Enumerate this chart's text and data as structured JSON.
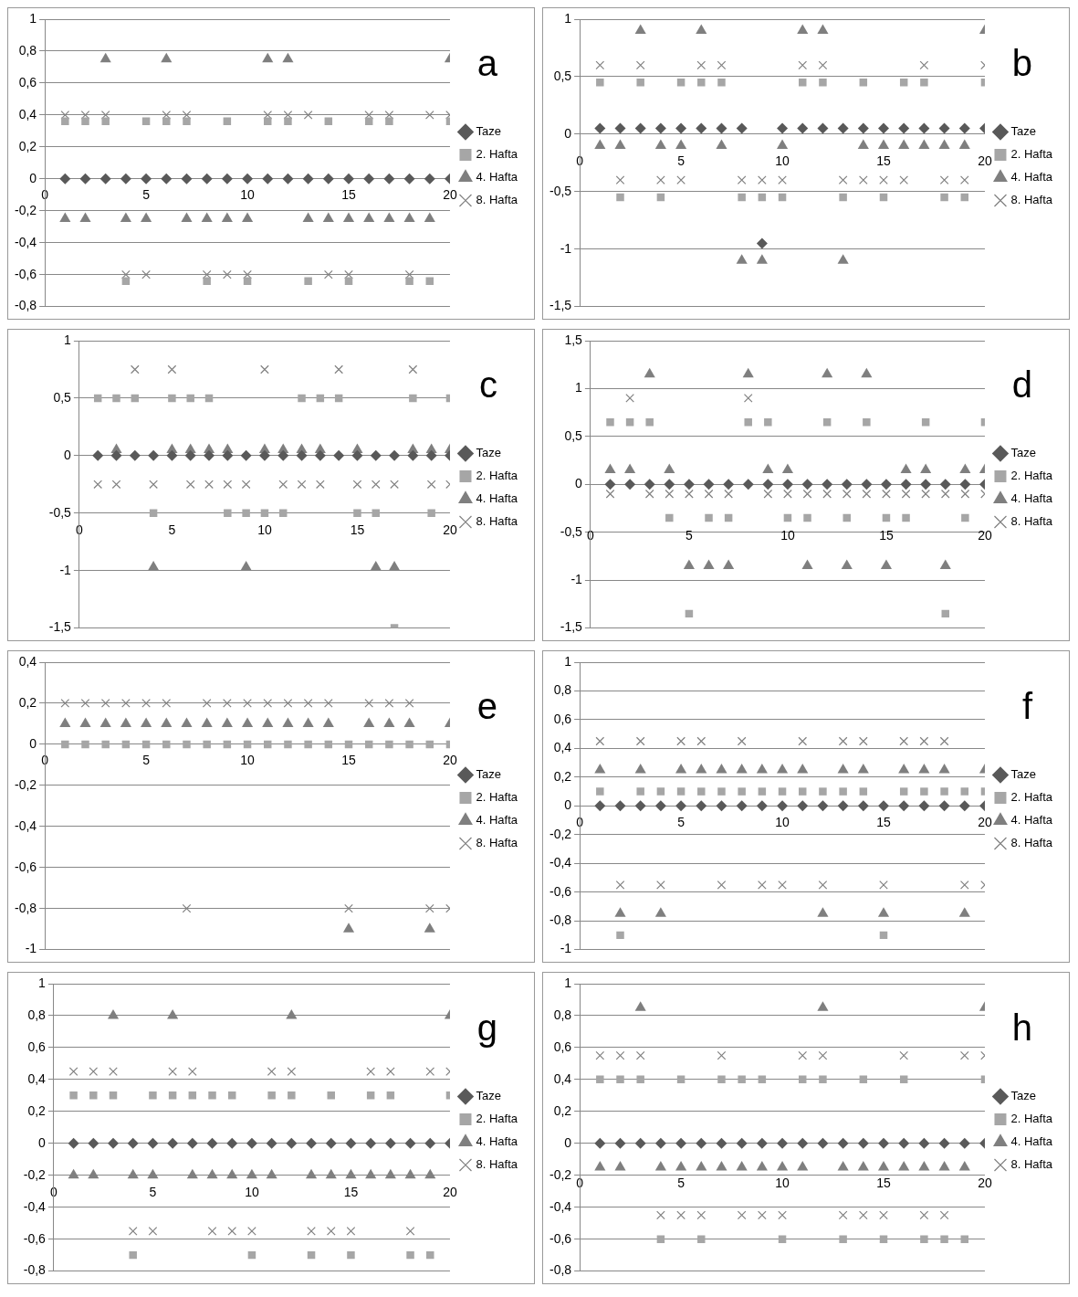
{
  "chart_data": [
    {
      "type": "scatter",
      "annotations": [
        "a"
      ],
      "x": [
        1,
        2,
        3,
        4,
        5,
        6,
        7,
        8,
        9,
        10,
        11,
        12,
        13,
        14,
        15,
        16,
        17,
        18,
        19,
        20
      ],
      "xlim": [
        0,
        20
      ],
      "xticks": [
        0,
        5,
        10,
        15,
        20
      ],
      "ylim": [
        -0.8,
        1
      ],
      "yticks": [
        {
          "value": -0.8,
          "label": "-0,8"
        },
        {
          "value": -0.6,
          "label": "-0,6"
        },
        {
          "value": -0.4,
          "label": "-0,4"
        },
        {
          "value": -0.2,
          "label": "-0,2"
        },
        0,
        {
          "value": 0.2,
          "label": "0,2"
        },
        {
          "value": 0.4,
          "label": "0,4"
        },
        {
          "value": 0.6,
          "label": "0,6"
        },
        {
          "value": 0.8,
          "label": "0,8"
        },
        1
      ],
      "grid": "y",
      "legend": "right",
      "series": [
        {
          "name": "Taze",
          "color": "#595959",
          "marker": "diamond",
          "values": [
            0,
            0,
            0,
            0,
            0,
            0,
            0,
            0,
            0,
            0,
            0,
            0,
            0,
            0,
            0,
            0,
            0,
            0,
            0,
            0
          ]
        },
        {
          "name": "2. Hafta",
          "color": "#a6a6a6",
          "marker": "square",
          "values": [
            0.36,
            0.36,
            0.36,
            -0.64,
            0.36,
            0.36,
            0.36,
            -0.64,
            0.36,
            -0.64,
            0.36,
            0.36,
            -0.64,
            0.36,
            -0.64,
            0.36,
            0.36,
            -0.64,
            -0.64,
            0.36
          ]
        },
        {
          "name": "4. Hafta",
          "color": "#7f7f7f",
          "marker": "triangle",
          "values": [
            -0.25,
            -0.25,
            0.75,
            -0.25,
            -0.25,
            0.75,
            -0.25,
            -0.25,
            -0.25,
            -0.25,
            0.75,
            0.75,
            -0.25,
            -0.25,
            -0.25,
            -0.25,
            -0.25,
            -0.25,
            -0.25,
            0.75
          ]
        },
        {
          "name": "8. Hafta",
          "color": "#808080",
          "marker": "cross",
          "values": [
            0.4,
            0.4,
            0.4,
            -0.6,
            -0.6,
            0.4,
            0.4,
            -0.6,
            -0.6,
            -0.6,
            0.4,
            0.4,
            0.4,
            -0.6,
            -0.6,
            0.4,
            0.4,
            -0.6,
            0.4,
            0.4
          ]
        }
      ]
    },
    {
      "type": "scatter",
      "annotations": [
        "b"
      ],
      "x": [
        1,
        2,
        3,
        4,
        5,
        6,
        7,
        8,
        9,
        10,
        11,
        12,
        13,
        14,
        15,
        16,
        17,
        18,
        19,
        20
      ],
      "xlim": [
        0,
        20
      ],
      "xticks": [
        0,
        5,
        10,
        15,
        20
      ],
      "ylim": [
        -1.5,
        1
      ],
      "yticks": [
        {
          "value": -1.5,
          "label": "-1,5"
        },
        -1,
        {
          "value": -0.5,
          "label": "-0,5"
        },
        0,
        {
          "value": 0.5,
          "label": "0,5"
        },
        1
      ],
      "grid": "y",
      "legend": "right",
      "series": [
        {
          "name": "Taze",
          "color": "#595959",
          "marker": "diamond",
          "values": [
            0.05,
            0.05,
            0.05,
            0.05,
            0.05,
            0.05,
            0.05,
            0.05,
            -0.95,
            0.05,
            0.05,
            0.05,
            0.05,
            0.05,
            0.05,
            0.05,
            0.05,
            0.05,
            0.05,
            0.05
          ]
        },
        {
          "name": "2. Hafta",
          "color": "#a6a6a6",
          "marker": "square",
          "values": [
            0.45,
            -0.55,
            0.45,
            -0.55,
            0.45,
            0.45,
            0.45,
            -0.55,
            -0.55,
            -0.55,
            0.45,
            0.45,
            -0.55,
            0.45,
            -0.55,
            0.45,
            0.45,
            -0.55,
            -0.55,
            0.45
          ]
        },
        {
          "name": "4. Hafta",
          "color": "#7f7f7f",
          "marker": "triangle",
          "values": [
            -0.1,
            -0.1,
            0.9,
            -0.1,
            -0.1,
            0.9,
            -0.1,
            -1.1,
            -1.1,
            -0.1,
            0.9,
            0.9,
            -1.1,
            -0.1,
            -0.1,
            -0.1,
            -0.1,
            -0.1,
            -0.1,
            0.9
          ]
        },
        {
          "name": "8. Hafta",
          "color": "#808080",
          "marker": "cross",
          "values": [
            0.6,
            -0.4,
            0.6,
            -0.4,
            -0.4,
            0.6,
            0.6,
            -0.4,
            -0.4,
            -0.4,
            0.6,
            0.6,
            -0.4,
            -0.4,
            -0.4,
            -0.4,
            0.6,
            -0.4,
            -0.4,
            0.6
          ]
        }
      ]
    },
    {
      "type": "scatter",
      "annotations": [
        "c"
      ],
      "x": [
        1,
        2,
        3,
        4,
        5,
        6,
        7,
        8,
        9,
        10,
        11,
        12,
        13,
        14,
        15,
        16,
        17,
        18,
        19,
        20
      ],
      "xlim": [
        0,
        20
      ],
      "xticks": [
        0,
        5,
        10,
        15,
        20
      ],
      "ylim": [
        -1.5,
        1
      ],
      "yticks": [
        {
          "value": -1.5,
          "label": "-1,5"
        },
        -1,
        {
          "value": -0.5,
          "label": "-0,5"
        },
        0,
        {
          "value": 0.5,
          "label": "0,5"
        },
        1
      ],
      "grid": "y",
      "legend": "right",
      "series": [
        {
          "name": "Taze",
          "color": "#595959",
          "marker": "diamond",
          "values": [
            0,
            0,
            0,
            0,
            0,
            0,
            0,
            0,
            0,
            0,
            0,
            0,
            0,
            0,
            0,
            0,
            0,
            0,
            0,
            0
          ]
        },
        {
          "name": "2. Hafta",
          "color": "#a6a6a6",
          "marker": "square",
          "values": [
            0.5,
            0.5,
            0.5,
            -0.5,
            0.5,
            0.5,
            0.5,
            -0.5,
            -0.5,
            -0.5,
            -0.5,
            0.5,
            0.5,
            0.5,
            -0.5,
            -0.5,
            -1.5,
            0.5,
            -0.5,
            0.5
          ]
        },
        {
          "name": "4. Hafta",
          "color": "#7f7f7f",
          "marker": "triangle",
          "values": [
            null,
            0.05,
            null,
            -0.97,
            0.05,
            0.05,
            0.05,
            0.05,
            -0.97,
            0.05,
            0.05,
            0.05,
            0.05,
            null,
            0.05,
            -0.97,
            -0.97,
            0.05,
            0.05,
            0.05
          ]
        },
        {
          "name": "8. Hafta",
          "color": "#808080",
          "marker": "cross",
          "values": [
            -0.25,
            -0.25,
            0.75,
            -0.25,
            0.75,
            -0.25,
            -0.25,
            -0.25,
            -0.25,
            0.75,
            -0.25,
            -0.25,
            -0.25,
            0.75,
            -0.25,
            -0.25,
            -0.25,
            0.75,
            -0.25,
            -0.25
          ]
        }
      ]
    },
    {
      "type": "scatter",
      "annotations": [
        "d"
      ],
      "x": [
        1,
        2,
        3,
        4,
        5,
        6,
        7,
        8,
        9,
        10,
        11,
        12,
        13,
        14,
        15,
        16,
        17,
        18,
        19,
        20
      ],
      "xlim": [
        0,
        20
      ],
      "xticks": [
        0,
        5,
        10,
        15,
        20
      ],
      "ylim": [
        -1.5,
        1.5
      ],
      "yticks": [
        {
          "value": -1.5,
          "label": "-1,5"
        },
        -1,
        {
          "value": -0.5,
          "label": "-0,5"
        },
        0,
        {
          "value": 0.5,
          "label": "0,5"
        },
        1,
        {
          "value": 1.5,
          "label": "1,5"
        }
      ],
      "grid": "y",
      "legend": "right",
      "series": [
        {
          "name": "Taze",
          "color": "#595959",
          "marker": "diamond",
          "values": [
            0,
            0,
            0,
            0,
            0,
            0,
            0,
            0,
            0,
            0,
            0,
            0,
            0,
            0,
            0,
            0,
            0,
            0,
            0,
            0
          ]
        },
        {
          "name": "2. Hafta",
          "color": "#a6a6a6",
          "marker": "square",
          "values": [
            0.65,
            0.65,
            0.65,
            -0.35,
            -1.35,
            -0.35,
            -0.35,
            0.65,
            0.65,
            -0.35,
            -0.35,
            0.65,
            -0.35,
            0.65,
            -0.35,
            -0.35,
            0.65,
            -1.35,
            -0.35,
            0.65
          ]
        },
        {
          "name": "4. Hafta",
          "color": "#7f7f7f",
          "marker": "triangle",
          "values": [
            0.15,
            0.15,
            1.15,
            0.15,
            -0.85,
            -0.85,
            -0.85,
            1.15,
            0.15,
            0.15,
            -0.85,
            1.15,
            -0.85,
            1.15,
            -0.85,
            0.15,
            0.15,
            -0.85,
            0.15,
            0.15
          ]
        },
        {
          "name": "8. Hafta",
          "color": "#808080",
          "marker": "cross",
          "values": [
            -0.1,
            0.9,
            -0.1,
            -0.1,
            -0.1,
            -0.1,
            -0.1,
            0.9,
            -0.1,
            -0.1,
            -0.1,
            -0.1,
            -0.1,
            -0.1,
            -0.1,
            -0.1,
            -0.1,
            -0.1,
            -0.1,
            -0.1
          ]
        }
      ]
    },
    {
      "type": "scatter",
      "annotations": [
        "e"
      ],
      "x": [
        1,
        2,
        3,
        4,
        5,
        6,
        7,
        8,
        9,
        10,
        11,
        12,
        13,
        14,
        15,
        16,
        17,
        18,
        19,
        20
      ],
      "xlim": [
        0,
        20
      ],
      "xticks": [
        0,
        5,
        10,
        15,
        20
      ],
      "ylim": [
        -1,
        0.4
      ],
      "yticks": [
        -1,
        {
          "value": -0.8,
          "label": "-0,8"
        },
        {
          "value": -0.6,
          "label": "-0,6"
        },
        {
          "value": -0.4,
          "label": "-0,4"
        },
        {
          "value": -0.2,
          "label": "-0,2"
        },
        0,
        {
          "value": 0.2,
          "label": "0,2"
        },
        {
          "value": 0.4,
          "label": "0,4"
        }
      ],
      "grid": "y",
      "legend": "right",
      "series": [
        {
          "name": "Taze",
          "color": "#595959",
          "marker": "diamond",
          "values": [
            null,
            null,
            null,
            null,
            null,
            null,
            null,
            null,
            null,
            null,
            null,
            null,
            null,
            null,
            null,
            null,
            null,
            null,
            null,
            null
          ]
        },
        {
          "name": "2. Hafta",
          "color": "#a6a6a6",
          "marker": "square",
          "values": [
            0,
            0,
            0,
            0,
            0,
            0,
            0,
            0,
            0,
            0,
            0,
            0,
            0,
            0,
            0,
            0,
            0,
            0,
            0,
            0
          ]
        },
        {
          "name": "4. Hafta",
          "color": "#7f7f7f",
          "marker": "triangle",
          "values": [
            0.1,
            0.1,
            0.1,
            0.1,
            0.1,
            0.1,
            0.1,
            0.1,
            0.1,
            0.1,
            0.1,
            0.1,
            0.1,
            0.1,
            -0.9,
            0.1,
            0.1,
            0.1,
            -0.9,
            0.1
          ]
        },
        {
          "name": "8. Hafta",
          "color": "#808080",
          "marker": "cross",
          "values": [
            0.2,
            0.2,
            0.2,
            0.2,
            0.2,
            0.2,
            -0.8,
            0.2,
            0.2,
            0.2,
            0.2,
            0.2,
            0.2,
            0.2,
            -0.8,
            0.2,
            0.2,
            0.2,
            -0.8,
            -0.8
          ]
        }
      ]
    },
    {
      "type": "scatter",
      "annotations": [
        "f"
      ],
      "x": [
        1,
        2,
        3,
        4,
        5,
        6,
        7,
        8,
        9,
        10,
        11,
        12,
        13,
        14,
        15,
        16,
        17,
        18,
        19,
        20
      ],
      "xlim": [
        0,
        20
      ],
      "xticks": [
        0,
        5,
        10,
        15,
        20
      ],
      "ylim": [
        -1,
        1
      ],
      "yticks": [
        -1,
        {
          "value": -0.8,
          "label": "-0,8"
        },
        {
          "value": -0.6,
          "label": "-0,6"
        },
        {
          "value": -0.4,
          "label": "-0,4"
        },
        {
          "value": -0.2,
          "label": "-0,2"
        },
        0,
        {
          "value": 0.2,
          "label": "0,2"
        },
        {
          "value": 0.4,
          "label": "0,4"
        },
        {
          "value": 0.6,
          "label": "0,6"
        },
        {
          "value": 0.8,
          "label": "0,8"
        },
        1
      ],
      "grid": "y",
      "legend": "right",
      "series": [
        {
          "name": "Taze",
          "color": "#595959",
          "marker": "diamond",
          "values": [
            0,
            0,
            0,
            0,
            0,
            0,
            0,
            0,
            0,
            0,
            0,
            0,
            0,
            0,
            0,
            0,
            0,
            0,
            0,
            0
          ]
        },
        {
          "name": "2. Hafta",
          "color": "#a6a6a6",
          "marker": "square",
          "values": [
            0.1,
            -0.9,
            0.1,
            0.1,
            0.1,
            0.1,
            0.1,
            0.1,
            0.1,
            0.1,
            0.1,
            0.1,
            0.1,
            0.1,
            -0.9,
            0.1,
            0.1,
            0.1,
            0.1,
            0.1
          ]
        },
        {
          "name": "4. Hafta",
          "color": "#7f7f7f",
          "marker": "triangle",
          "values": [
            0.25,
            -0.75,
            0.25,
            -0.75,
            0.25,
            0.25,
            0.25,
            0.25,
            0.25,
            0.25,
            0.25,
            -0.75,
            0.25,
            0.25,
            -0.75,
            0.25,
            0.25,
            0.25,
            -0.75,
            0.25
          ]
        },
        {
          "name": "8. Hafta",
          "color": "#808080",
          "marker": "cross",
          "values": [
            0.45,
            -0.55,
            0.45,
            -0.55,
            0.45,
            0.45,
            -0.55,
            0.45,
            -0.55,
            -0.55,
            0.45,
            -0.55,
            0.45,
            0.45,
            -0.55,
            0.45,
            0.45,
            0.45,
            -0.55,
            -0.55
          ]
        }
      ]
    },
    {
      "type": "scatter",
      "annotations": [
        "g"
      ],
      "x": [
        1,
        2,
        3,
        4,
        5,
        6,
        7,
        8,
        9,
        10,
        11,
        12,
        13,
        14,
        15,
        16,
        17,
        18,
        19,
        20
      ],
      "xlim": [
        0,
        20
      ],
      "xticks": [
        0,
        5,
        10,
        15,
        20
      ],
      "ylim": [
        -0.8,
        1
      ],
      "yticks": [
        {
          "value": -0.8,
          "label": "-0,8"
        },
        {
          "value": -0.6,
          "label": "-0,6"
        },
        {
          "value": -0.4,
          "label": "-0,4"
        },
        {
          "value": -0.2,
          "label": "-0,2"
        },
        0,
        {
          "value": 0.2,
          "label": "0,2"
        },
        {
          "value": 0.4,
          "label": "0,4"
        },
        {
          "value": 0.6,
          "label": "0,6"
        },
        {
          "value": 0.8,
          "label": "0,8"
        },
        1
      ],
      "grid": "y",
      "legend": "right",
      "series": [
        {
          "name": "Taze",
          "color": "#595959",
          "marker": "diamond",
          "values": [
            0,
            0,
            0,
            0,
            0,
            0,
            0,
            0,
            0,
            0,
            0,
            0,
            0,
            0,
            0,
            0,
            0,
            0,
            0,
            0
          ]
        },
        {
          "name": "2. Hafta",
          "color": "#a6a6a6",
          "marker": "square",
          "values": [
            0.3,
            0.3,
            0.3,
            -0.7,
            0.3,
            0.3,
            0.3,
            0.3,
            0.3,
            -0.7,
            0.3,
            0.3,
            -0.7,
            0.3,
            -0.7,
            0.3,
            0.3,
            -0.7,
            -0.7,
            0.3
          ]
        },
        {
          "name": "4. Hafta",
          "color": "#7f7f7f",
          "marker": "triangle",
          "values": [
            -0.2,
            -0.2,
            0.8,
            -0.2,
            -0.2,
            0.8,
            -0.2,
            -0.2,
            -0.2,
            -0.2,
            -0.2,
            0.8,
            -0.2,
            -0.2,
            -0.2,
            -0.2,
            -0.2,
            -0.2,
            -0.2,
            0.8
          ]
        },
        {
          "name": "8. Hafta",
          "color": "#808080",
          "marker": "cross",
          "values": [
            0.45,
            0.45,
            0.45,
            -0.55,
            -0.55,
            0.45,
            0.45,
            -0.55,
            -0.55,
            -0.55,
            0.45,
            0.45,
            -0.55,
            -0.55,
            -0.55,
            0.45,
            0.45,
            -0.55,
            0.45,
            0.45
          ]
        }
      ]
    },
    {
      "type": "scatter",
      "annotations": [
        "h"
      ],
      "x": [
        1,
        2,
        3,
        4,
        5,
        6,
        7,
        8,
        9,
        10,
        11,
        12,
        13,
        14,
        15,
        16,
        17,
        18,
        19,
        20
      ],
      "xlim": [
        0,
        20
      ],
      "xticks": [
        0,
        5,
        10,
        15,
        20
      ],
      "ylim": [
        -0.8,
        1
      ],
      "yticks": [
        {
          "value": -0.8,
          "label": "-0,8"
        },
        {
          "value": -0.6,
          "label": "-0,6"
        },
        {
          "value": -0.4,
          "label": "-0,4"
        },
        {
          "value": -0.2,
          "label": "-0,2"
        },
        0,
        {
          "value": 0.2,
          "label": "0,2"
        },
        {
          "value": 0.4,
          "label": "0,4"
        },
        {
          "value": 0.6,
          "label": "0,6"
        },
        {
          "value": 0.8,
          "label": "0,8"
        },
        1
      ],
      "grid": "y",
      "legend": "right",
      "series": [
        {
          "name": "Taze",
          "color": "#595959",
          "marker": "diamond",
          "values": [
            0,
            0,
            0,
            0,
            0,
            0,
            0,
            0,
            0,
            0,
            0,
            0,
            0,
            0,
            0,
            0,
            0,
            0,
            0,
            0
          ]
        },
        {
          "name": "2. Hafta",
          "color": "#a6a6a6",
          "marker": "square",
          "values": [
            0.4,
            0.4,
            0.4,
            -0.6,
            0.4,
            -0.6,
            0.4,
            0.4,
            0.4,
            -0.6,
            0.4,
            0.4,
            -0.6,
            0.4,
            -0.6,
            0.4,
            -0.6,
            -0.6,
            -0.6,
            0.4
          ]
        },
        {
          "name": "4. Hafta",
          "color": "#7f7f7f",
          "marker": "triangle",
          "values": [
            -0.15,
            -0.15,
            0.85,
            -0.15,
            -0.15,
            -0.15,
            -0.15,
            -0.15,
            -0.15,
            -0.15,
            -0.15,
            0.85,
            -0.15,
            -0.15,
            -0.15,
            -0.15,
            -0.15,
            -0.15,
            -0.15,
            0.85
          ]
        },
        {
          "name": "8. Hafta",
          "color": "#808080",
          "marker": "cross",
          "values": [
            0.55,
            0.55,
            0.55,
            -0.45,
            -0.45,
            -0.45,
            0.55,
            -0.45,
            -0.45,
            -0.45,
            0.55,
            0.55,
            -0.45,
            -0.45,
            -0.45,
            0.55,
            -0.45,
            -0.45,
            0.55,
            0.55
          ]
        }
      ]
    }
  ]
}
